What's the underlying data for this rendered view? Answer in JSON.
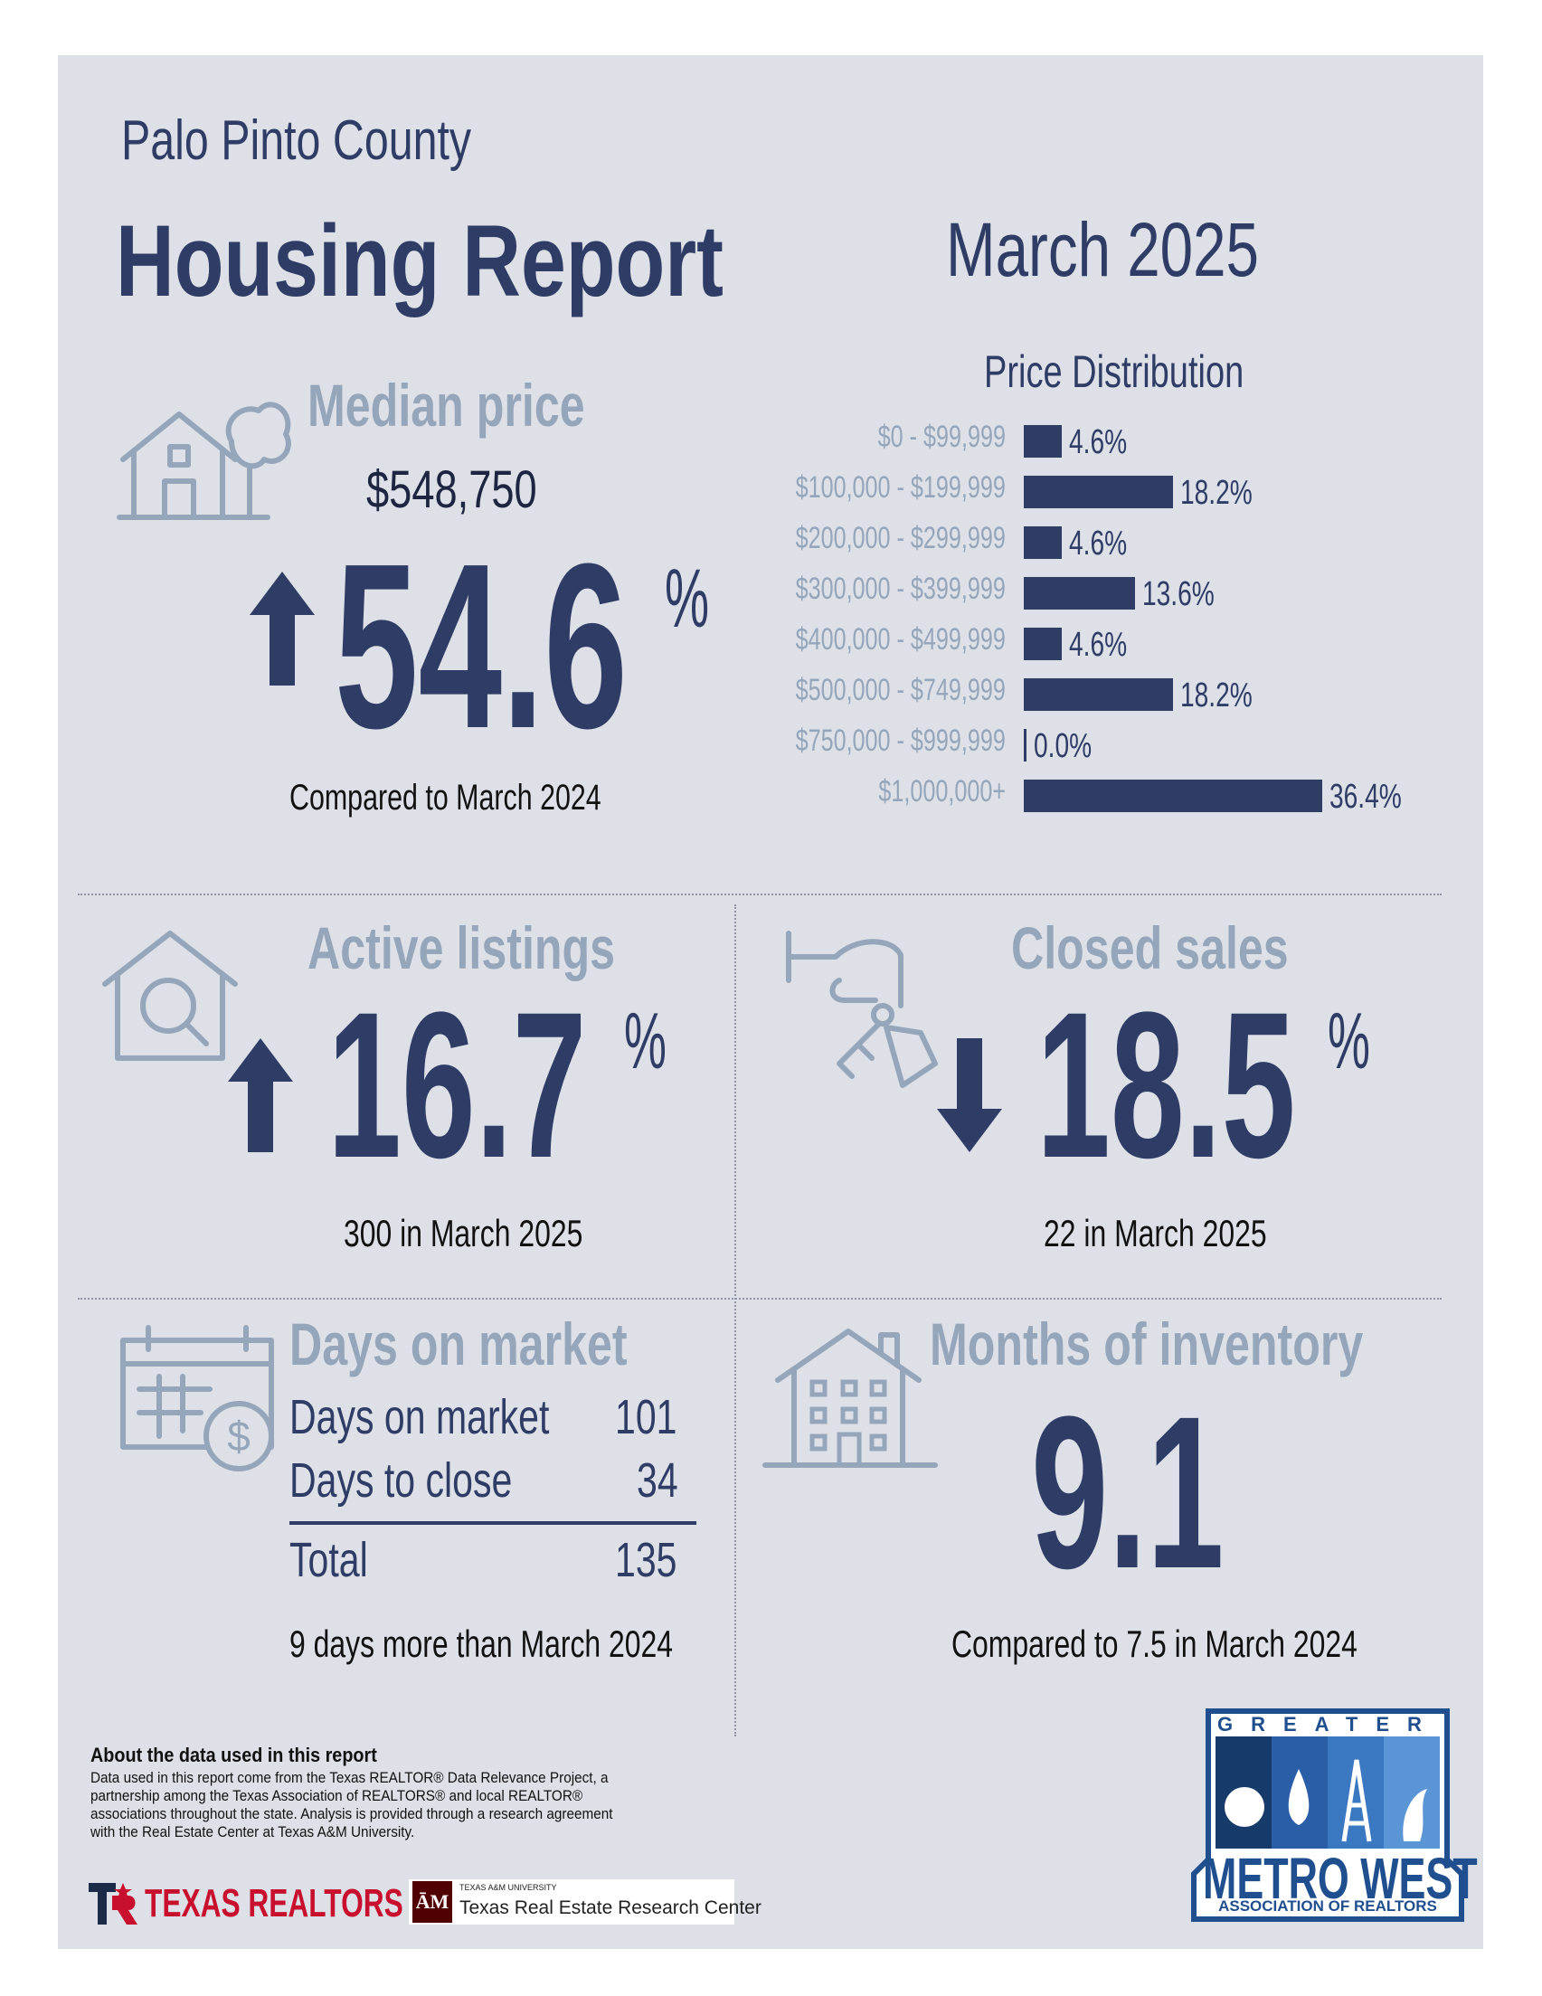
{
  "header": {
    "county": "Palo Pinto County",
    "title": "Housing Report",
    "period": "March 2025"
  },
  "median": {
    "heading": "Median price",
    "price": "$548,750",
    "change_value": "54.6",
    "change_unit": "%",
    "direction": "up",
    "comparison": "Compared to March 2024"
  },
  "price_distribution": {
    "title": "Price Distribution",
    "chart_data": {
      "type": "bar",
      "orientation": "horizontal",
      "title": "Price Distribution",
      "categories": [
        "$0 - $99,999",
        "$100,000 - $199,999",
        "$200,000 - $299,999",
        "$300,000 - $399,999",
        "$400,000 - $499,999",
        "$500,000 - $749,999",
        "$750,000 - $999,999",
        "$1,000,000+"
      ],
      "values": [
        4.6,
        18.2,
        4.6,
        13.6,
        4.6,
        18.2,
        0.0,
        36.4
      ],
      "value_labels": [
        "4.6%",
        "18.2%",
        "4.6%",
        "13.6%",
        "4.6%",
        "18.2%",
        "0.0%",
        "36.4%"
      ],
      "bar_color": "#2f3d66"
    }
  },
  "active_listings": {
    "heading": "Active listings",
    "change_value": "16.7",
    "change_unit": "%",
    "direction": "up",
    "detail": "300 in March 2025"
  },
  "closed_sales": {
    "heading": "Closed sales",
    "change_value": "18.5",
    "change_unit": "%",
    "direction": "down",
    "detail": "22 in March 2025"
  },
  "days_on_market": {
    "heading": "Days on market",
    "rows": [
      {
        "label": "Days on market",
        "value": "101"
      },
      {
        "label": "Days to close",
        "value": "34"
      }
    ],
    "total_label": "Total",
    "total_value": "135",
    "comparison": "9 days more than March 2024"
  },
  "months_inventory": {
    "heading": "Months of inventory",
    "value": "9.1",
    "comparison": "Compared to 7.5 in March 2024"
  },
  "footer": {
    "about_title": "About the data used in this report",
    "about_lines": [
      "Data used in this report come from the Texas REALTOR® Data Relevance Project, a",
      "partnership among the Texas Association of REALTORS® and local REALTOR®",
      "associations throughout the state. Analysis is provided through a research agreement",
      "with the Real Estate Center at Texas A&M University."
    ],
    "texas_realtors": "TEXAS REALTORS",
    "tamu_small": "TEXAS A&M UNIVERSITY",
    "tamu_name": "Texas Real Estate Research Center"
  },
  "logo": {
    "top": "GREATER",
    "main": "METRO WEST",
    "sub": "ASSOCIATION OF REALTORS"
  },
  "colors": {
    "navy": "#2f3d66",
    "gray_blue": "#95a6bb",
    "panel": "#dde0e7",
    "logo_blue": "#1f4f8f"
  }
}
